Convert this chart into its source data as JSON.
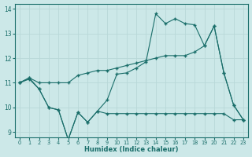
{
  "xlabel": "Humidex (Indice chaleur)",
  "background_color": "#cce8e8",
  "line_color": "#1a6e6a",
  "grid_color": "#b8d8d8",
  "xlim": [
    -0.5,
    23.5
  ],
  "ylim": [
    8.8,
    14.2
  ],
  "yticks": [
    9,
    10,
    11,
    12,
    13,
    14
  ],
  "xticks": [
    0,
    1,
    2,
    3,
    4,
    5,
    6,
    7,
    8,
    9,
    10,
    11,
    12,
    13,
    14,
    15,
    16,
    17,
    18,
    19,
    20,
    21,
    22,
    23
  ],
  "line1_x": [
    0,
    1,
    2,
    3,
    4,
    5,
    6,
    7,
    8,
    9,
    10,
    11,
    12,
    13,
    14,
    15,
    16,
    17,
    18,
    19,
    20,
    21,
    22,
    23
  ],
  "line1_y": [
    11.0,
    11.2,
    11.0,
    11.0,
    11.0,
    11.0,
    11.3,
    11.4,
    11.5,
    11.5,
    11.6,
    11.7,
    11.8,
    11.9,
    12.0,
    12.1,
    12.1,
    12.1,
    12.25,
    12.5,
    13.3,
    11.4,
    10.1,
    9.5
  ],
  "line2_x": [
    0,
    1,
    2,
    3,
    4,
    5,
    6,
    7,
    8,
    9,
    10,
    11,
    12,
    13,
    14,
    15,
    16,
    17,
    18,
    19,
    20,
    21,
    22,
    23
  ],
  "line2_y": [
    11.0,
    11.2,
    10.75,
    10.0,
    9.9,
    8.7,
    9.8,
    9.4,
    9.85,
    10.3,
    11.35,
    11.4,
    11.6,
    11.85,
    13.8,
    13.4,
    13.6,
    13.4,
    13.35,
    12.5,
    13.3,
    11.4,
    10.1,
    9.5
  ],
  "line3_x": [
    0,
    1,
    2,
    3,
    4,
    5,
    6,
    7,
    8,
    9,
    10,
    11,
    12,
    13,
    14,
    15,
    16,
    17,
    18,
    19,
    20,
    21,
    22,
    23
  ],
  "line3_y": [
    11.0,
    11.15,
    10.75,
    10.0,
    9.9,
    8.7,
    9.8,
    9.4,
    9.85,
    9.75,
    9.75,
    9.75,
    9.75,
    9.75,
    9.75,
    9.75,
    9.75,
    9.75,
    9.75,
    9.75,
    9.75,
    9.75,
    9.5,
    9.5
  ]
}
